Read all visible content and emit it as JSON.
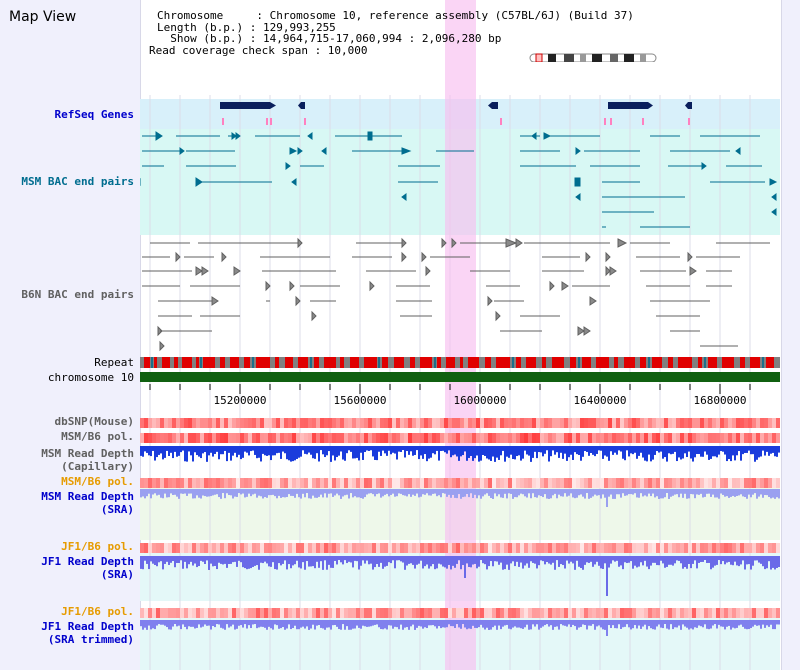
{
  "title": "Map View",
  "info": {
    "chromosome_line": "Chromosome     : Chromosome 10, reference assembly (C57BL/6J) (Build 37)",
    "length_line": "Length (b.p.) : 129,993,255",
    "show_line": "  Show (b.p.) : 14,964,715-17,060,994 : 2,096,280 bp",
    "coverage_line": "Read coverage check span : 10,000"
  },
  "tracks": {
    "refseq": "RefSeq Genes",
    "msm_bac": "MSM BAC end pairs",
    "b6n_bac": "B6N BAC end pairs",
    "repeat": "Repeat",
    "chromosome": "chromosome 10",
    "dbsnp": "dbSNP(Mouse)",
    "msm_b6_pol": "MSM/B6 pol.",
    "msm_depth_cap_1": "MSM Read Depth",
    "msm_depth_cap_2": "(Capillary)",
    "msm_b6_pol_2": "MSM/B6 pol.",
    "msm_depth_sra_1": "MSM Read Depth",
    "msm_depth_sra_2": "(SRA)",
    "jf1_b6_pol": "JF1/B6 pol.",
    "jf1_depth_sra_1": "JF1 Read Depth",
    "jf1_depth_sra_2": "(SRA)",
    "jf1_b6_pol_2": "JF1/B6 pol.",
    "jf1_depth_trim_1": "JF1 Read Depth",
    "jf1_depth_trim_2": "(SRA trimmed)"
  },
  "ruler": {
    "labels": [
      "15200000",
      "15600000",
      "16000000",
      "16400000",
      "16800000"
    ]
  },
  "colors": {
    "msm_label": "#0000cc",
    "jf1_pol_label": "#e69b00",
    "teal": "#006d8f",
    "gray": "#606060",
    "chromosome_bar": "#106010"
  }
}
